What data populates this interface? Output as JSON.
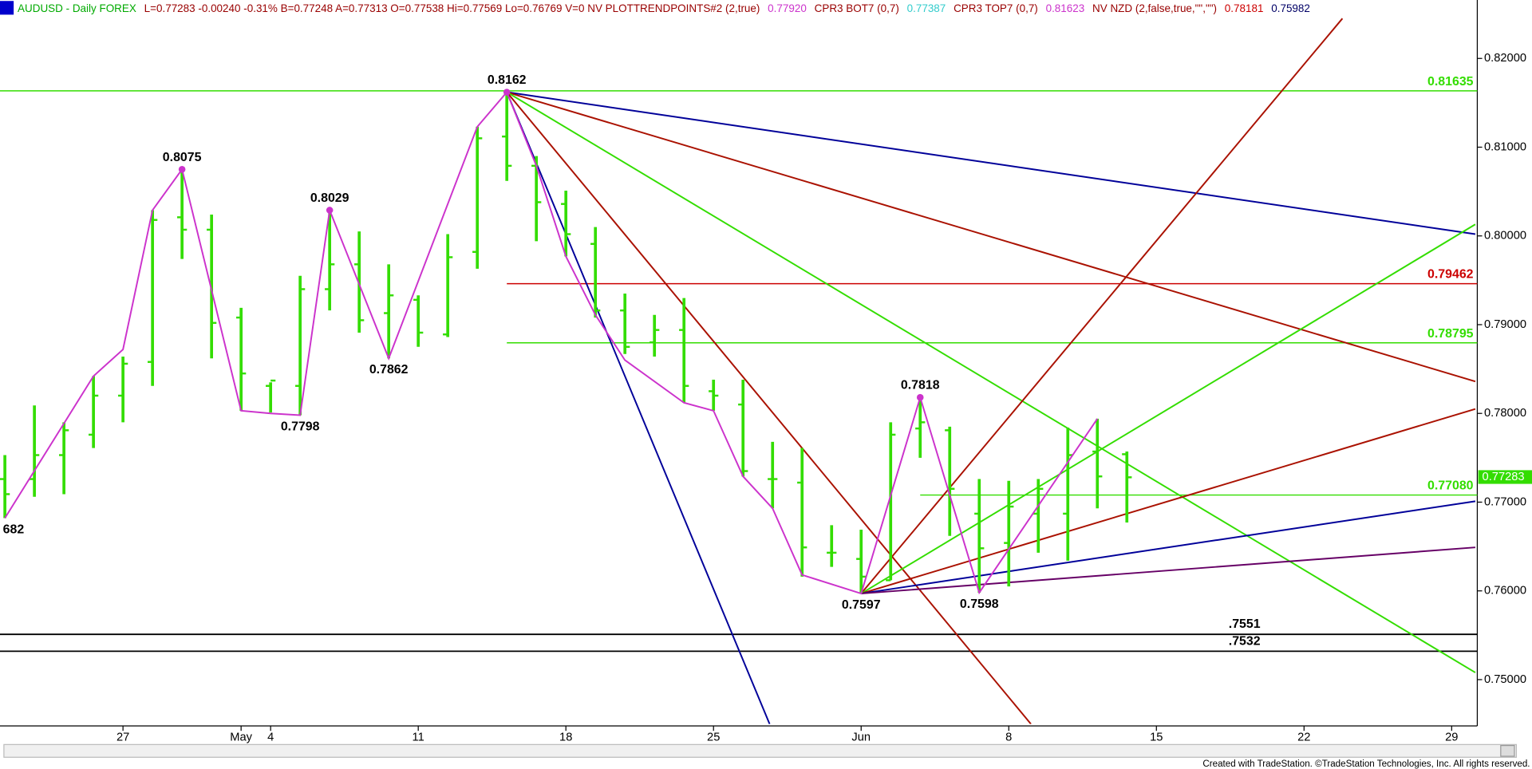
{
  "chart_data": {
    "type": "ohlc",
    "header": [
      {
        "text": "AUDUSD - Daily  FOREX",
        "color": "#00aa00"
      },
      {
        "text": "L=0.77283  -0.00240  -0.31%  B=0.77248  A=0.77313  O=0.77538  Hi=0.77569  Lo=0.76769  V=0  NV  PLOTTRENDPOINTS#2 (2,true)",
        "color": "#990000"
      },
      {
        "text": "0.77920",
        "color": "#cc33cc"
      },
      {
        "text": "CPR3 BOT7 (0,7)",
        "color": "#990000"
      },
      {
        "text": "0.77387",
        "color": "#33cccc"
      },
      {
        "text": "CPR3 TOP7 (0,7)",
        "color": "#990000"
      },
      {
        "text": "0.81623",
        "color": "#cc33cc"
      },
      {
        "text": "NV NZD (2,false,true,\"\",\"\")",
        "color": "#990000"
      },
      {
        "text": "0.78181",
        "color": "#cc0000"
      },
      {
        "text": "0.75982",
        "color": "#000066"
      }
    ],
    "categories": [
      null,
      null,
      null,
      null,
      "27",
      null,
      null,
      null,
      "May",
      "4",
      null,
      null,
      null,
      null,
      "11",
      null,
      null,
      null,
      null,
      "18",
      null,
      null,
      null,
      null,
      "25",
      null,
      null,
      null,
      null,
      "Jun",
      null,
      null,
      null,
      null,
      "8",
      null,
      null,
      null,
      null,
      "15",
      null,
      null,
      null,
      null,
      "22",
      null,
      null,
      null,
      null,
      "29"
    ],
    "open": [
      0.7726,
      0.7726,
      0.7753,
      0.7776,
      0.782,
      0.7858,
      0.8021,
      0.8007,
      0.7908,
      0.7831,
      0.7831,
      0.794,
      0.7968,
      0.7913,
      0.7928,
      0.7889,
      0.7982,
      0.8112,
      0.8079,
      0.8036,
      0.7991,
      0.7916,
      0.788,
      0.7894,
      0.7825,
      0.781,
      0.7726,
      0.7722,
      0.7643,
      0.7636,
      0.7612,
      0.7783,
      0.7781,
      0.7687,
      0.7654,
      0.7687,
      0.7687,
      0.7757,
      0.7754,
      null,
      null,
      null,
      null,
      null,
      null,
      null,
      null,
      null,
      null,
      null
    ],
    "high": [
      0.7753,
      0.7809,
      0.779,
      0.7842,
      0.7864,
      0.8029,
      0.8075,
      0.8024,
      0.7919,
      0.7835,
      0.7955,
      0.8029,
      0.8005,
      0.7968,
      0.7933,
      0.8002,
      0.8123,
      0.8162,
      0.809,
      0.8051,
      0.801,
      0.7935,
      0.7911,
      0.793,
      0.7838,
      0.7838,
      0.7768,
      0.7761,
      0.7674,
      0.7669,
      0.779,
      0.7818,
      0.7785,
      0.7726,
      0.7724,
      0.7726,
      0.7784,
      0.7794,
      0.7757,
      null,
      null,
      null,
      null,
      null,
      null,
      null,
      null,
      null,
      null,
      null
    ],
    "low": [
      0.7682,
      0.7706,
      0.7709,
      0.7761,
      0.779,
      0.7831,
      0.7974,
      0.7862,
      0.7803,
      0.7801,
      0.7798,
      0.7916,
      0.7891,
      0.7862,
      0.7875,
      0.7886,
      0.7963,
      0.8062,
      0.7994,
      0.7977,
      0.7908,
      0.7867,
      0.7864,
      0.7812,
      0.7803,
      0.7729,
      0.7693,
      0.7616,
      0.7627,
      0.7597,
      0.7612,
      0.775,
      0.7662,
      0.7598,
      0.7605,
      0.7643,
      0.7634,
      0.7693,
      0.7677,
      null,
      null,
      null,
      null,
      null,
      null,
      null,
      null,
      null,
      null,
      null
    ],
    "close": [
      0.7709,
      0.7753,
      0.7781,
      0.782,
      0.7856,
      0.8018,
      0.8007,
      0.7902,
      0.7845,
      0.7837,
      0.794,
      0.7968,
      0.7905,
      0.7933,
      0.7891,
      0.7976,
      0.811,
      0.8079,
      0.8038,
      0.8002,
      0.7916,
      0.7875,
      0.7894,
      0.7831,
      0.782,
      0.7735,
      0.7726,
      0.7649,
      0.7643,
      0.7616,
      0.7776,
      0.779,
      0.7715,
      0.7648,
      0.7695,
      0.7715,
      0.7753,
      0.7729,
      0.7728,
      null,
      null,
      null,
      null,
      null,
      null,
      null,
      null,
      null,
      null,
      null
    ],
    "color": "#33dd00",
    "ylim": [
      0.745,
      0.8246
    ],
    "yticks": [
      {
        "value": 0.82,
        "label": "0.82000"
      },
      {
        "value": 0.81,
        "label": "0.81000"
      },
      {
        "value": 0.8,
        "label": "0.80000"
      },
      {
        "value": 0.79,
        "label": "0.79000"
      },
      {
        "value": 0.78,
        "label": "0.78000"
      },
      {
        "value": 0.77,
        "label": "0.77000"
      },
      {
        "value": 0.76,
        "label": "0.76000"
      },
      {
        "value": 0.75,
        "label": "0.75000"
      }
    ],
    "last_price": 0.77283,
    "last_price_color": "#33dd00",
    "zigzag": {
      "color": "#cc33cc",
      "x": [
        0,
        3,
        4,
        5,
        6,
        8,
        9,
        10,
        11,
        13,
        16,
        17,
        18,
        19,
        20,
        21,
        23,
        24,
        25,
        26,
        27,
        29,
        31,
        33,
        37
      ],
      "values": [
        0.7682,
        0.7842,
        0.7872,
        0.8029,
        0.8075,
        0.7803,
        0.78,
        0.7798,
        0.8029,
        0.7862,
        0.8123,
        0.8162,
        0.8079,
        0.7977,
        0.7911,
        0.786,
        0.7812,
        0.7803,
        0.7729,
        0.7693,
        0.7618,
        0.7597,
        0.7818,
        0.7598,
        0.7794
      ]
    },
    "trendlines": [
      {
        "color": "#000099",
        "x": [
          17,
          49.8
        ],
        "values": [
          0.8162,
          0.8002
        ]
      },
      {
        "color": "#aa1100",
        "x": [
          17,
          49.8
        ],
        "values": [
          0.8162,
          0.7836
        ]
      },
      {
        "color": "#33dd00",
        "x": [
          17,
          49.8
        ],
        "values": [
          0.8162,
          0.7508
        ]
      },
      {
        "color": "#aa1100",
        "x": [
          17,
          34.75
        ],
        "values": [
          0.8162,
          0.745
        ]
      },
      {
        "color": "#000099",
        "x": [
          17,
          25.9
        ],
        "values": [
          0.8162,
          0.745
        ]
      },
      {
        "color": "#aa1100",
        "x": [
          29,
          45.3
        ],
        "values": [
          0.7597,
          0.8245
        ]
      },
      {
        "color": "#33dd00",
        "x": [
          29,
          49.8
        ],
        "values": [
          0.7597,
          0.8013
        ]
      },
      {
        "color": "#aa1100",
        "x": [
          29,
          49.8
        ],
        "values": [
          0.7597,
          0.7805
        ]
      },
      {
        "color": "#000099",
        "x": [
          29,
          49.8
        ],
        "values": [
          0.7597,
          0.7701
        ]
      },
      {
        "color": "#660066",
        "x": [
          29,
          49.8
        ],
        "values": [
          0.7597,
          0.7649
        ]
      }
    ],
    "levels": [
      {
        "value": 0.81635,
        "label": "0.81635",
        "color": "#33dd00",
        "from": 0
      },
      {
        "value": 0.79462,
        "label": "0.79462",
        "color": "#cc0000",
        "from": 17
      },
      {
        "value": 0.78795,
        "label": "0.78795",
        "color": "#33dd00",
        "from": 17
      },
      {
        "value": 0.7708,
        "label": "0.77080",
        "color": "#33dd00",
        "from": 31
      },
      {
        "value": 0.7551,
        "label": ".7551",
        "color": "#000000",
        "from": 0
      },
      {
        "value": 0.7532,
        "label": ".7532",
        "color": "#000000",
        "from": 0
      }
    ],
    "annotations": [
      {
        "label": "682",
        "index": 0,
        "value": 0.7682,
        "pos": "below"
      },
      {
        "label": "0.8075",
        "index": 6,
        "value": 0.8075,
        "pos": "above"
      },
      {
        "label": "0.7798",
        "index": 10,
        "value": 0.7798,
        "pos": "below"
      },
      {
        "label": "0.8029",
        "index": 11,
        "value": 0.8029,
        "pos": "above"
      },
      {
        "label": "0.7862",
        "index": 13,
        "value": 0.7862,
        "pos": "below"
      },
      {
        "label": "0.8162",
        "index": 17,
        "value": 0.8162,
        "pos": "above"
      },
      {
        "label": "0.7597",
        "index": 29,
        "value": 0.7597,
        "pos": "below"
      },
      {
        "label": "0.7818",
        "index": 31,
        "value": 0.7818,
        "pos": "above"
      },
      {
        "label": "0.7598",
        "index": 33,
        "value": 0.7598,
        "pos": "below"
      }
    ],
    "footer": "Created with TradeStation. ©TradeStation Technologies, Inc. All rights reserved."
  }
}
